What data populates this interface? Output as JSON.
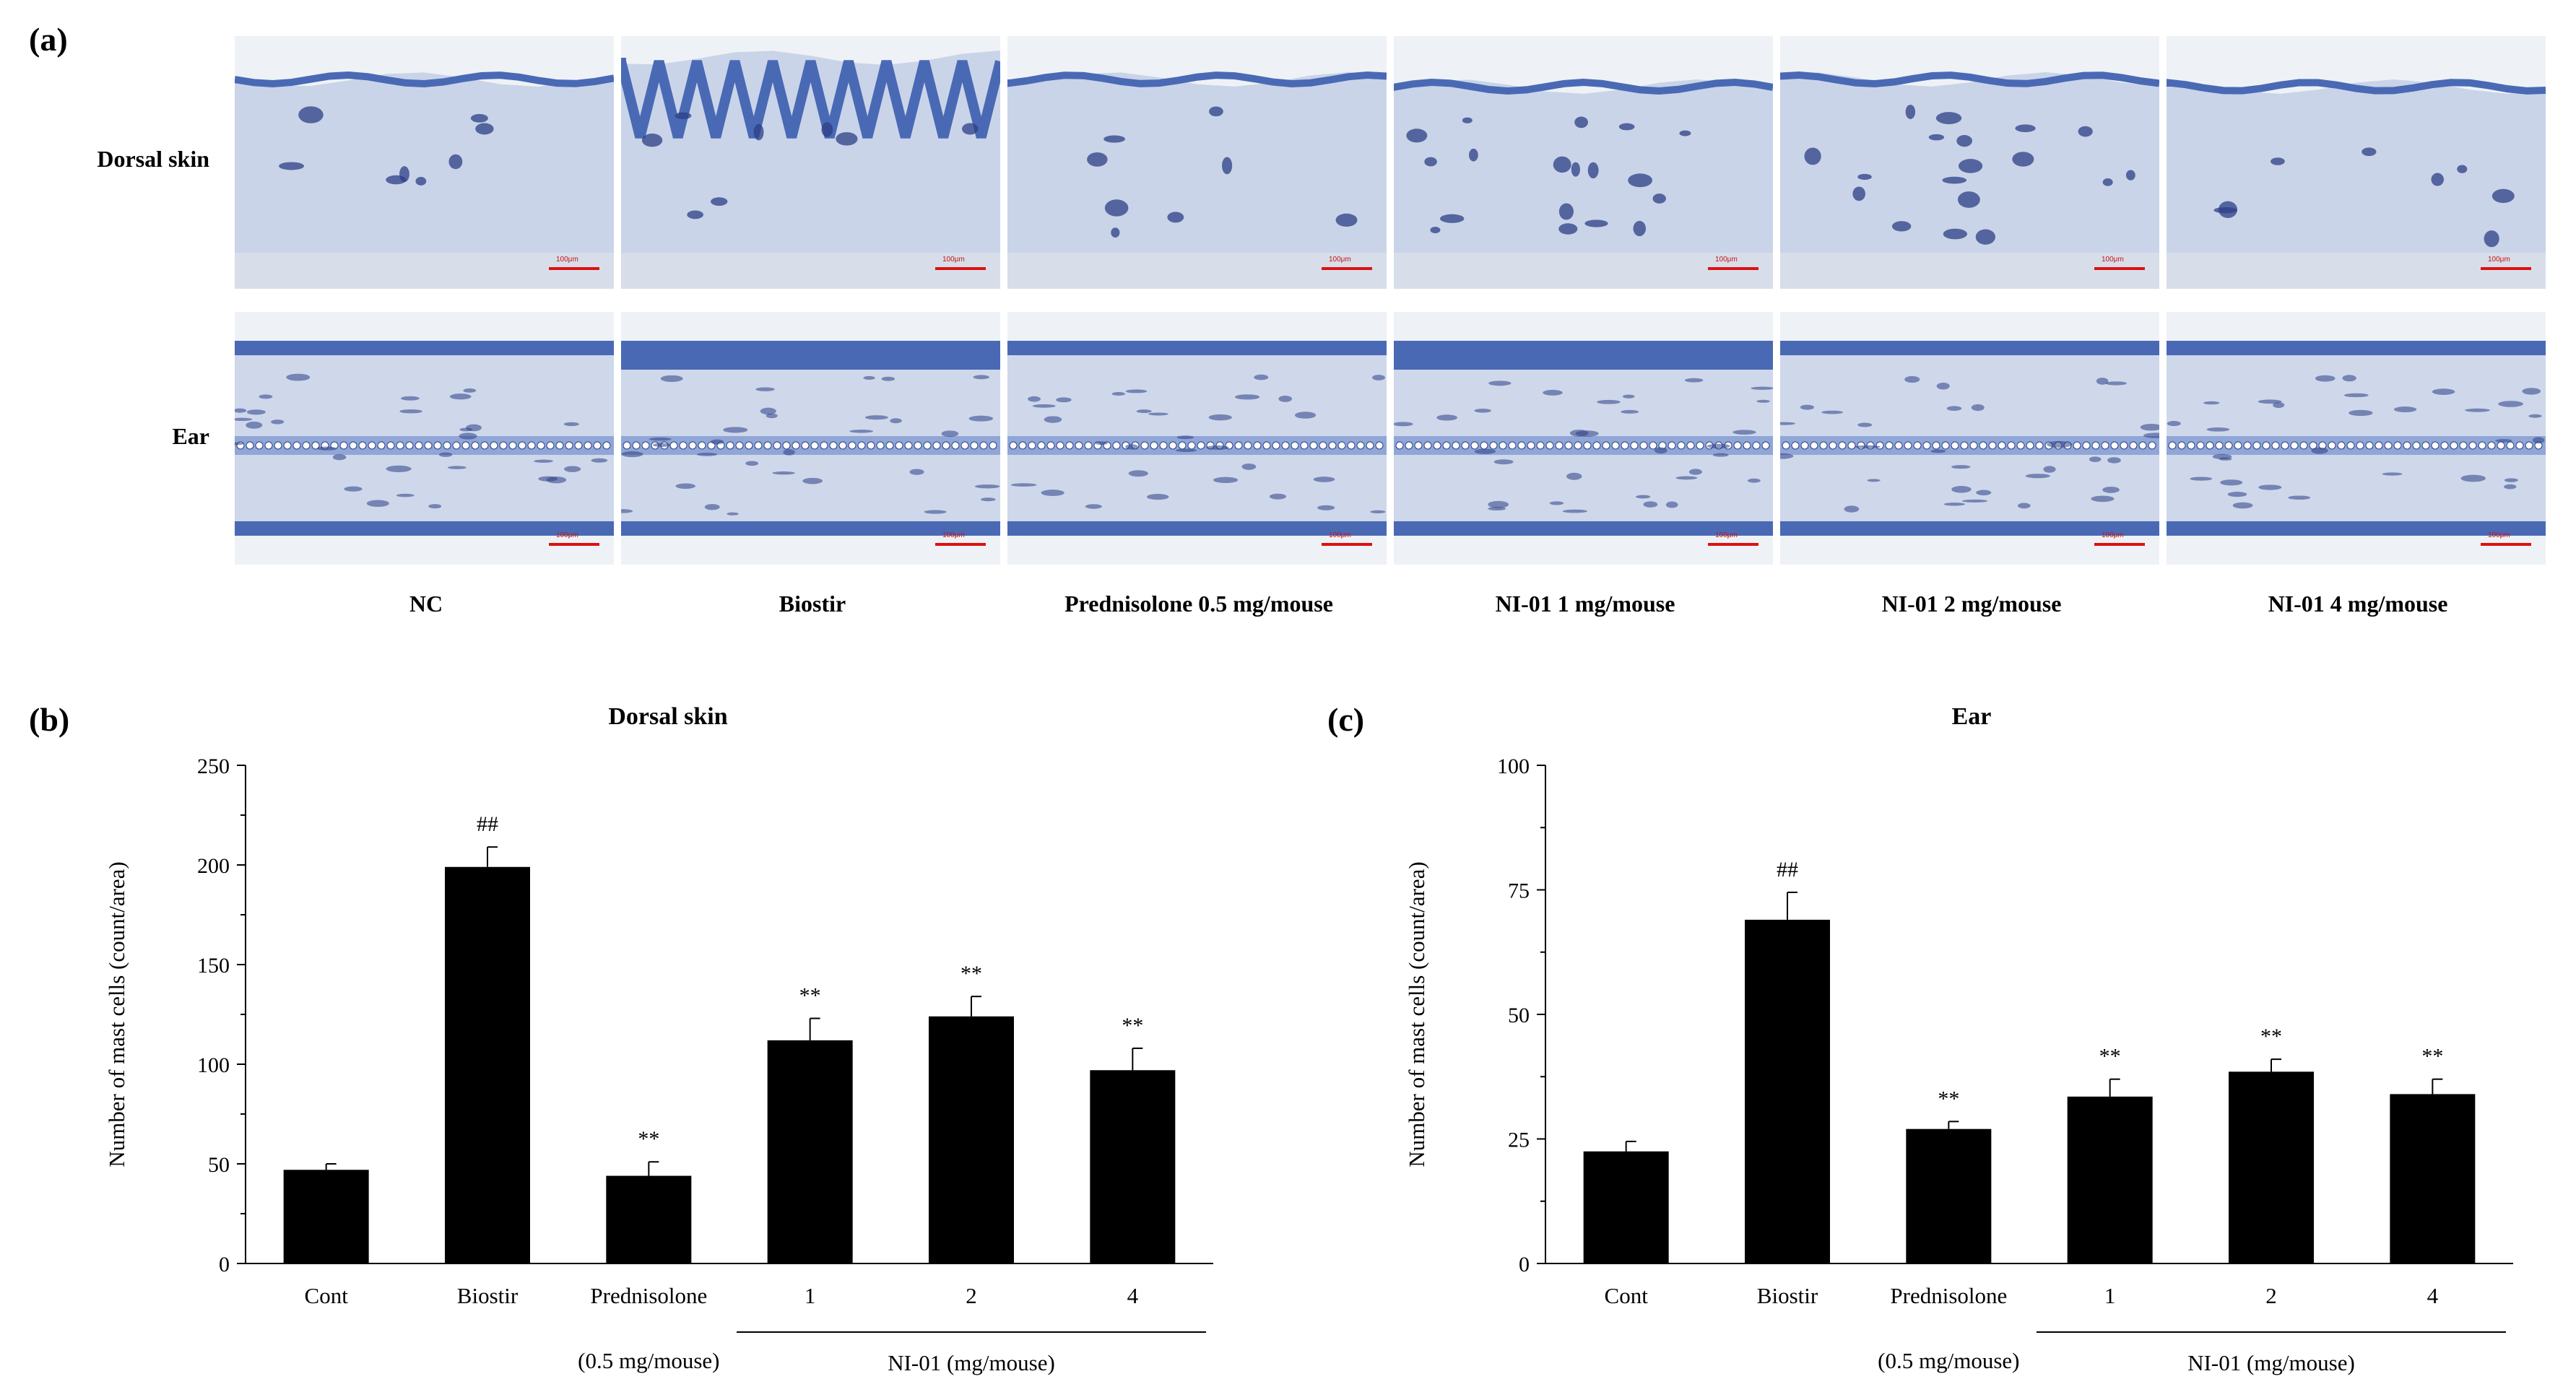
{
  "panels": {
    "a": {
      "letter": "(a)"
    },
    "b": {
      "letter": "(b)"
    },
    "c": {
      "letter": "(c)"
    }
  },
  "micrograph_grid": {
    "rows": [
      "Dorsal skin",
      "Ear"
    ],
    "columns": [
      "NC",
      "Biostir",
      "Prednisolone 0.5 mg/mouse",
      "NI-01 1 mg/mouse",
      "NI-01 2 mg/mouse",
      "NI-01 4 mg/mouse"
    ],
    "scale_bar_label": "100μm",
    "stain_colors": {
      "background": "#eef2f6",
      "tissue": "#b9c7e2",
      "epidermis": "#4a69b5",
      "nuclei": "#2c3f87",
      "cartilage": "#8fa6d6"
    }
  },
  "chart_data": [
    {
      "type": "bar",
      "title": "Dorsal skin",
      "ylabel": "Number of mast cells (count/area)",
      "xlabel": "",
      "categories": [
        "Cont",
        "Biostir",
        "Prednisolone",
        "1",
        "2",
        "4"
      ],
      "values": [
        47,
        199,
        44,
        112,
        124,
        97
      ],
      "errors": [
        3,
        10,
        7,
        11,
        10,
        11
      ],
      "annotations": [
        "",
        "##",
        "**",
        "**",
        "**",
        "**"
      ],
      "ylim": [
        0,
        250
      ],
      "yticks": [
        0,
        50,
        100,
        150,
        200,
        250
      ],
      "group_labels": {
        "prednisolone_dose": "(0.5 mg/mouse)",
        "ni01": "NI-01 (mg/mouse)"
      },
      "bar_color": "#000000",
      "grid": false
    },
    {
      "type": "bar",
      "title": "Ear",
      "ylabel": "Number of mast cells (count/area)",
      "xlabel": "",
      "categories": [
        "Cont",
        "Biostir",
        "Prednisolone",
        "1",
        "2",
        "4"
      ],
      "values": [
        22.5,
        69,
        27,
        33.5,
        38.5,
        34
      ],
      "errors": [
        2,
        5.5,
        1.5,
        3.5,
        2.5,
        3
      ],
      "annotations": [
        "",
        "##",
        "**",
        "**",
        "**",
        "**"
      ],
      "ylim": [
        0,
        100
      ],
      "yticks": [
        0,
        25,
        50,
        75,
        100
      ],
      "group_labels": {
        "prednisolone_dose": "(0.5 mg/mouse)",
        "ni01": "NI-01 (mg/mouse)"
      },
      "bar_color": "#000000",
      "grid": false
    }
  ]
}
